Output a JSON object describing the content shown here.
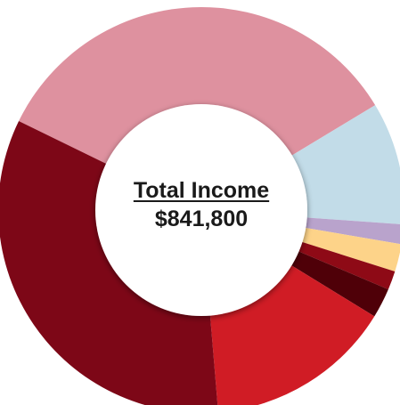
{
  "center": {
    "title": "Total Income",
    "value": "$841,800"
  },
  "chart_data": {
    "type": "pie",
    "donut": true,
    "total": 841800,
    "slices": [
      {
        "value": 287300,
        "color": "#de919f"
      },
      {
        "value": 82300,
        "color": "#c2dce8"
      },
      {
        "value": 13200,
        "color": "#b9a3cc"
      },
      {
        "value": 18500,
        "color": "#fdd389"
      },
      {
        "value": 12600,
        "color": "#8e0a16"
      },
      {
        "value": 20000,
        "color": "#4f0008"
      },
      {
        "value": 125500,
        "color": "#d01c25"
      },
      {
        "value": 282400,
        "color": "#7d0717"
      }
    ]
  }
}
